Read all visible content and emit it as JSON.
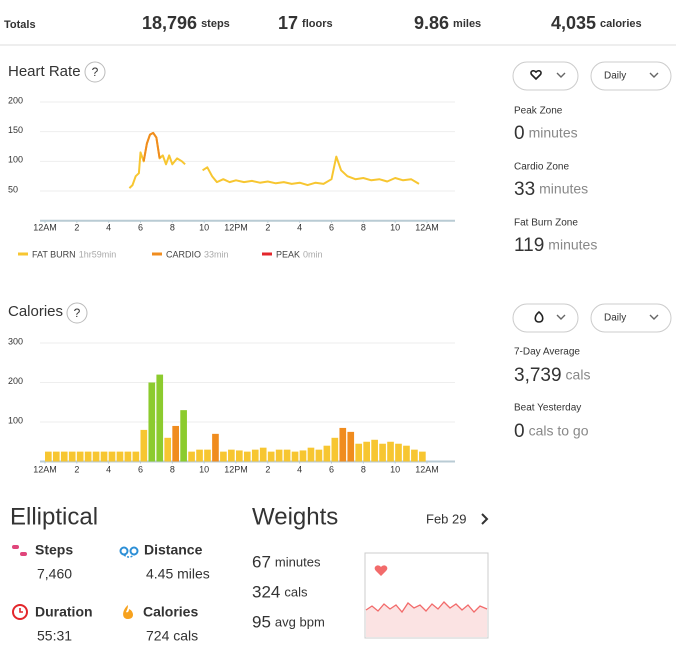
{
  "totals": {
    "label": "Totals",
    "items": [
      {
        "value": "18,796",
        "unit": "steps"
      },
      {
        "value": "17",
        "unit": "floors"
      },
      {
        "value": "9.86",
        "unit": "miles"
      },
      {
        "value": "4,035",
        "unit": "calories"
      }
    ]
  },
  "chart_data": [
    {
      "type": "line",
      "title": "Heart Rate",
      "help": "?",
      "xlim": [
        0,
        24
      ],
      "ylim": [
        0,
        200
      ],
      "yticks": [
        50,
        100,
        150,
        200
      ],
      "xticks": [
        {
          "value": 0,
          "label": "12AM"
        },
        2,
        4,
        6,
        8,
        10,
        {
          "value": 12,
          "label": "12PM"
        },
        {
          "value": 14,
          "label": "2"
        },
        {
          "value": 16,
          "label": "4"
        },
        {
          "value": 18,
          "label": "6"
        },
        {
          "value": 20,
          "label": "8"
        },
        {
          "value": 22,
          "label": "10"
        },
        {
          "value": 24,
          "label": "12AM"
        }
      ],
      "grid": true,
      "series": [
        {
          "name": "FAT BURN",
          "duration": "1hr59min",
          "color": "#f7c631",
          "x": [
            5.3,
            5.5,
            5.7,
            5.9,
            6.0,
            6.2,
            6.4,
            6.6,
            6.8,
            7.0,
            7.2,
            7.4,
            7.6,
            7.8,
            8.0,
            8.3,
            8.6,
            8.8,
            9.3,
            9.9,
            10.2,
            10.5,
            10.8,
            11.2,
            11.6,
            12,
            12.5,
            13,
            13.5,
            14,
            14.5,
            15,
            15.5,
            16,
            16.5,
            17,
            17.5,
            18,
            18.3,
            18.6,
            19,
            19.5,
            20,
            20.5,
            21,
            21.5,
            22,
            22.5,
            23,
            23.5
          ],
          "values": [
            55,
            60,
            75,
            80,
            115,
            100,
            130,
            145,
            148,
            140,
            105,
            110,
            95,
            110,
            95,
            105,
            100,
            95,
            null,
            85,
            90,
            75,
            65,
            70,
            65,
            68,
            65,
            67,
            64,
            66,
            63,
            65,
            62,
            64,
            60,
            64,
            62,
            70,
            108,
            85,
            75,
            70,
            72,
            68,
            70,
            66,
            72,
            68,
            70,
            62
          ]
        },
        {
          "name": "CARDIO",
          "duration": "33min",
          "color": "#f08c1e",
          "x": [
            6.2,
            6.4,
            6.6,
            6.8,
            7.0,
            7.2
          ],
          "values": [
            100,
            130,
            145,
            148,
            140,
            105
          ]
        },
        {
          "name": "PEAK",
          "duration": "0min",
          "color": "#e3262b",
          "x": [],
          "values": []
        }
      ]
    },
    {
      "type": "bar",
      "title": "Calories",
      "help": "?",
      "xlim": [
        0,
        24
      ],
      "ylim": [
        0,
        300
      ],
      "yticks": [
        100,
        200,
        300
      ],
      "xticks": [
        {
          "value": 0,
          "label": "12AM"
        },
        2,
        4,
        6,
        8,
        10,
        {
          "value": 12,
          "label": "12PM"
        },
        {
          "value": 14,
          "label": "2"
        },
        {
          "value": 16,
          "label": "4"
        },
        {
          "value": 18,
          "label": "6"
        },
        {
          "value": 20,
          "label": "8"
        },
        {
          "value": 22,
          "label": "10"
        },
        {
          "value": 24,
          "label": "12AM"
        }
      ],
      "grid": true,
      "series": [
        {
          "color": "#f7c631",
          "x": [
            0,
            0.5,
            1,
            1.5,
            2,
            2.5,
            3,
            3.5,
            4,
            4.5,
            5,
            5.5,
            6,
            7.5,
            9,
            9.5,
            10,
            11,
            11.5,
            12,
            12.5,
            13,
            13.5,
            14,
            14.5,
            15,
            15.5,
            16,
            16.5,
            17,
            17.5,
            18,
            19.5,
            20,
            20.5,
            21,
            21.5,
            22,
            22.5,
            23,
            23.5
          ],
          "values": [
            25,
            25,
            25,
            25,
            25,
            25,
            25,
            25,
            25,
            25,
            25,
            25,
            80,
            60,
            25,
            30,
            30,
            25,
            30,
            28,
            25,
            30,
            35,
            25,
            30,
            30,
            25,
            28,
            35,
            30,
            40,
            60,
            45,
            50,
            55,
            45,
            50,
            45,
            40,
            30,
            25
          ]
        },
        {
          "color": "#f08c1e",
          "x": [
            8,
            10.5,
            18.5,
            19
          ],
          "values": [
            90,
            70,
            85,
            75
          ]
        },
        {
          "color": "#8ccb2e",
          "x": [
            6.5,
            7,
            8.5
          ],
          "values": [
            200,
            220,
            130
          ]
        }
      ]
    }
  ],
  "controls": {
    "period": "Daily"
  },
  "zones": [
    {
      "label": "Peak Zone",
      "value": "0",
      "unit": "minutes"
    },
    {
      "label": "Cardio Zone",
      "value": "33",
      "unit": "minutes"
    },
    {
      "label": "Fat Burn Zone",
      "value": "119",
      "unit": "minutes"
    }
  ],
  "calorie_stats": [
    {
      "label": "7-Day Average",
      "value": "3,739",
      "unit": "cals"
    },
    {
      "label": "Beat Yesterday",
      "value": "0",
      "unit": "cals to go"
    }
  ],
  "elliptical": {
    "title": "Elliptical",
    "stats": [
      {
        "label": "Steps",
        "value": "7,460"
      },
      {
        "label": "Distance",
        "value": "4.45 miles"
      },
      {
        "label": "Duration",
        "value": "55:31"
      },
      {
        "label": "Calories",
        "value": "724 cals"
      }
    ]
  },
  "weights": {
    "title": "Weights",
    "date": "Feb 29",
    "stats": [
      {
        "value": "67",
        "unit": "minutes"
      },
      {
        "value": "324",
        "unit": "cals"
      },
      {
        "value": "95",
        "unit": "avg bpm"
      }
    ]
  }
}
